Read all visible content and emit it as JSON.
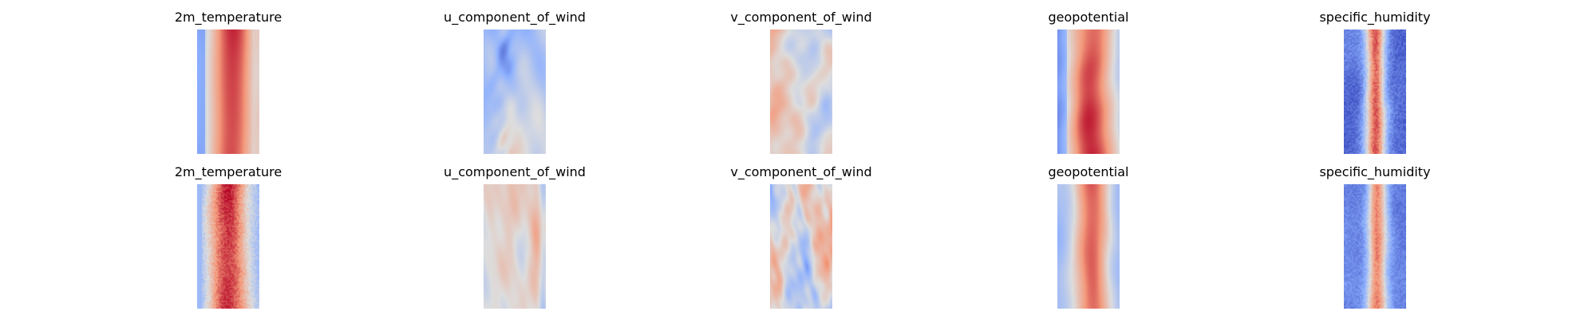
{
  "figure": {
    "rows": [
      {
        "panels": [
          {
            "title": "2m_temperature",
            "style": "temp-a",
            "seed": 11
          },
          {
            "title": "u_component_of_wind",
            "style": "uwind-a",
            "seed": 23
          },
          {
            "title": "v_component_of_wind",
            "style": "vwind-a",
            "seed": 37
          },
          {
            "title": "geopotential",
            "style": "geo-a",
            "seed": 41
          },
          {
            "title": "specific_humidity",
            "style": "hum-a",
            "seed": 53
          }
        ]
      },
      {
        "panels": [
          {
            "title": "2m_temperature",
            "style": "temp-b",
            "seed": 67
          },
          {
            "title": "u_component_of_wind",
            "style": "uwind-b",
            "seed": 71
          },
          {
            "title": "v_component_of_wind",
            "style": "vwind-b",
            "seed": 83
          },
          {
            "title": "geopotential",
            "style": "geo-b",
            "seed": 97
          },
          {
            "title": "specific_humidity",
            "style": "hum-b",
            "seed": 101
          }
        ]
      }
    ]
  },
  "chart_data": {
    "type": "heatmap",
    "colormap": "coolwarm",
    "colormap_stops": [
      "#3b4cc0",
      "#8db0fe",
      "#dddddd",
      "#f49a7b",
      "#b40426"
    ],
    "axes": "off",
    "grid": false,
    "layout": "2 rows x 5 columns",
    "panels": [
      {
        "row": 1,
        "col": 1,
        "title": "2m_temperature"
      },
      {
        "row": 1,
        "col": 2,
        "title": "u_component_of_wind"
      },
      {
        "row": 1,
        "col": 3,
        "title": "v_component_of_wind"
      },
      {
        "row": 1,
        "col": 4,
        "title": "geopotential"
      },
      {
        "row": 1,
        "col": 5,
        "title": "specific_humidity"
      },
      {
        "row": 2,
        "col": 1,
        "title": "2m_temperature"
      },
      {
        "row": 2,
        "col": 2,
        "title": "u_component_of_wind"
      },
      {
        "row": 2,
        "col": 3,
        "title": "v_component_of_wind"
      },
      {
        "row": 2,
        "col": 4,
        "title": "geopotential"
      },
      {
        "row": 2,
        "col": 5,
        "title": "specific_humidity"
      }
    ]
  }
}
